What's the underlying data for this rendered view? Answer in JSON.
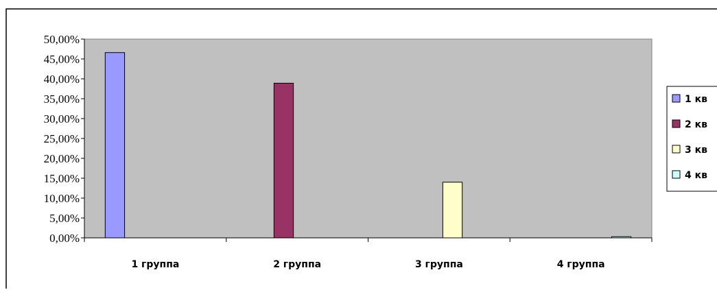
{
  "chart_data": {
    "type": "bar",
    "categories": [
      "1 группа",
      "2 группа",
      "3 группа",
      "4 группа"
    ],
    "series": [
      {
        "name": "1 кв",
        "color": "#9999ff",
        "values": [
          0.466,
          null,
          null,
          null
        ]
      },
      {
        "name": "2 кв",
        "color": "#993366",
        "values": [
          null,
          0.389,
          null,
          null
        ]
      },
      {
        "name": "3 кв",
        "color": "#ffffcc",
        "values": [
          null,
          null,
          0.14,
          null
        ]
      },
      {
        "name": "4 кв",
        "color": "#ccffff",
        "values": [
          null,
          null,
          null,
          0.003
        ]
      }
    ],
    "y_ticks": [
      "0,00%",
      "5,00%",
      "10,00%",
      "15,00%",
      "20,00%",
      "25,00%",
      "30,00%",
      "35,00%",
      "40,00%",
      "45,00%",
      "50,00%"
    ],
    "ylim": [
      0,
      0.5
    ],
    "y_format": "percent",
    "plot_background": "#c0c0c0",
    "grid": false,
    "legend_position": "right"
  }
}
